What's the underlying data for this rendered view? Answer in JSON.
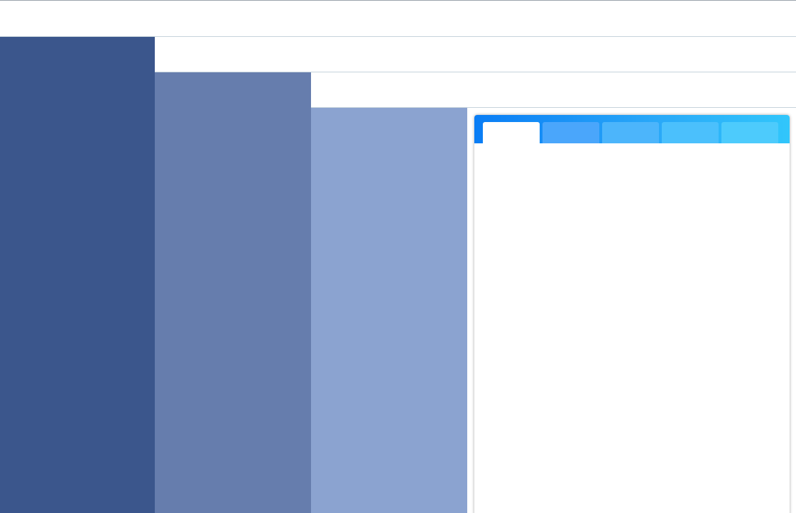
{
  "colors": {
    "pane_1": "#3b568c",
    "pane_2": "#667dad",
    "pane_3": "#8ba3d0",
    "tab_strip_start": "#0a7df5",
    "tab_strip_end": "#31c6fb"
  },
  "tabs": [
    {
      "label": "",
      "active": true
    },
    {
      "label": "",
      "active": false
    },
    {
      "label": "",
      "active": false
    },
    {
      "label": "",
      "active": false
    },
    {
      "label": "",
      "active": false
    }
  ],
  "content": {
    "body_text": ""
  }
}
